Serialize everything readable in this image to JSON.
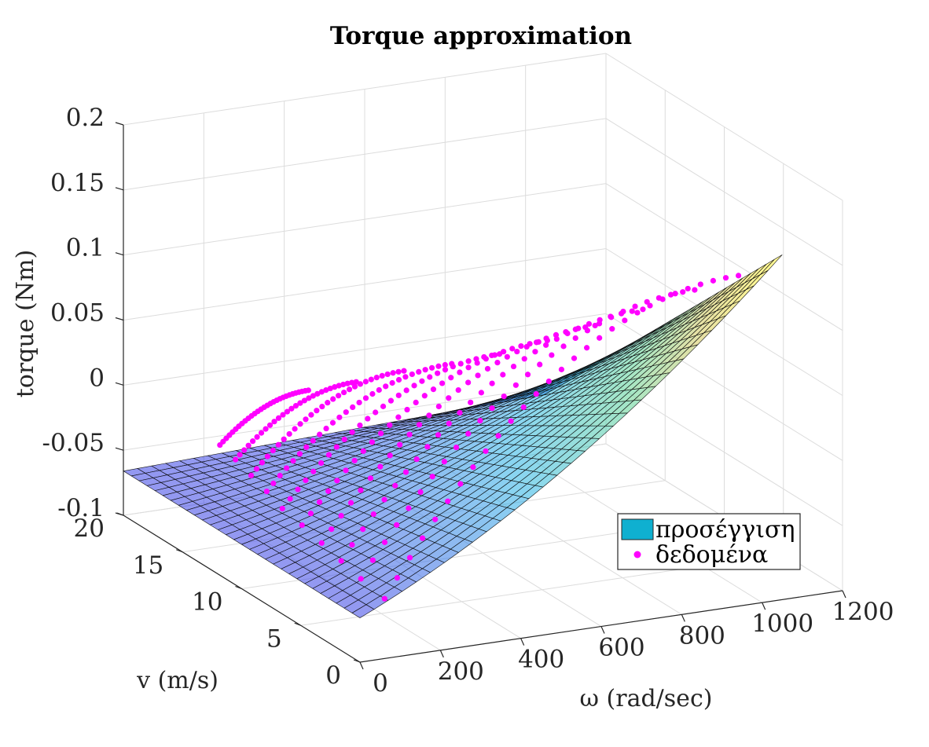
{
  "chart_data": {
    "type": "surface3d",
    "title": "Torque approximation",
    "xlabel": "ω (rad/sec)",
    "ylabel": "v (m/s)",
    "zlabel": "torque (Nm)",
    "xlim": [
      0,
      1200
    ],
    "ylim": [
      0,
      20
    ],
    "zlim": [
      -0.1,
      0.2
    ],
    "xticks": [
      0,
      200,
      400,
      600,
      800,
      1000,
      1200
    ],
    "xtick_labels": [
      "0",
      "200",
      "400",
      "600",
      "800",
      "1000",
      "1200"
    ],
    "yticks": [
      0,
      5,
      10,
      15,
      20
    ],
    "ytick_labels": [
      "0",
      "5",
      "10",
      "15",
      "20"
    ],
    "zticks": [
      -0.1,
      -0.05,
      0,
      0.05,
      0.1,
      0.15,
      0.2
    ],
    "ztick_labels": [
      "-0.1",
      "-0.05",
      "0",
      "0.05",
      "0.1",
      "0.15",
      "0.2"
    ],
    "grid": true,
    "legend_position": "bottom-right",
    "legend": [
      "προσέγγιση",
      "δεδομένα"
    ],
    "surface": {
      "name": "προσέγγιση",
      "x_range": [
        0,
        1050
      ],
      "y_range": [
        0,
        20
      ],
      "grid_size": [
        30,
        30
      ],
      "corner_values": [
        {
          "x": 0,
          "y": 20,
          "z": -0.066
        },
        {
          "x": 1050,
          "y": 20,
          "z": -0.055
        },
        {
          "x": 1050,
          "y": 0,
          "z": 0.145
        },
        {
          "x": 0,
          "y": 0,
          "z": -0.066
        }
      ],
      "colormap": "parula-like (low blue → cyan → green → yellow high)"
    },
    "data_series": {
      "name": "δεδομένα",
      "color": "#ff00ff",
      "curves": [
        {
          "v": 2,
          "omega_range": [
            120,
            1000
          ],
          "torque_at_min": -0.068,
          "torque_at_max": 0.14
        },
        {
          "v": 4,
          "omega_range": [
            120,
            950
          ],
          "torque_at_min": -0.064,
          "torque_at_max": 0.12
        },
        {
          "v": 6,
          "omega_range": [
            130,
            880
          ],
          "torque_at_min": -0.062,
          "torque_at_max": 0.097
        },
        {
          "v": 8,
          "omega_range": [
            140,
            820
          ],
          "torque_at_min": -0.06,
          "torque_at_max": 0.076
        },
        {
          "v": 10,
          "omega_range": [
            150,
            760
          ],
          "torque_at_min": -0.058,
          "torque_at_max": 0.056
        },
        {
          "v": 12,
          "omega_range": [
            160,
            700
          ],
          "torque_at_min": -0.057,
          "torque_at_max": 0.037
        },
        {
          "v": 14,
          "omega_range": [
            180,
            640
          ],
          "torque_at_min": -0.056,
          "torque_at_max": 0.021
        },
        {
          "v": 16,
          "omega_range": [
            200,
            580
          ],
          "torque_at_min": -0.056,
          "torque_at_max": 0.007
        },
        {
          "v": 18,
          "omega_range": [
            220,
            520
          ],
          "torque_at_min": -0.056,
          "torque_at_max": -0.01
        },
        {
          "v": 20,
          "omega_range": [
            240,
            460
          ],
          "torque_at_min": -0.057,
          "torque_at_max": -0.025
        }
      ]
    }
  },
  "colors": {
    "grid": "#dcdcdc",
    "axis": "#262626",
    "data_points": "#ff00ff",
    "legend_swatch": "#0fb0d0"
  }
}
